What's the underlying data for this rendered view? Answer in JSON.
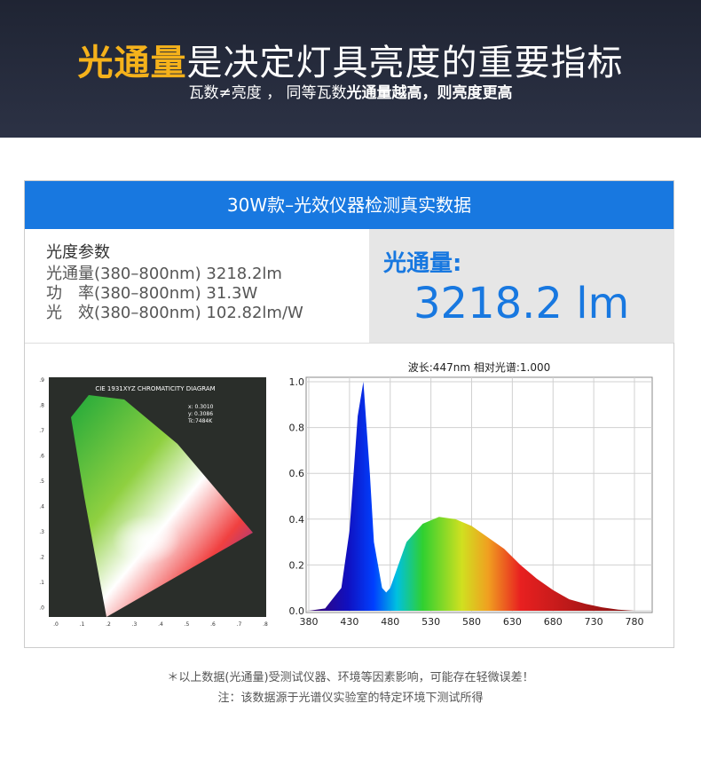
{
  "header": {
    "title_highlight": "光通量",
    "title_rest": "是决定灯具亮度的重要指标",
    "subtitle_plain": "瓦数≠亮度 ， 同等瓦数",
    "subtitle_bold": "光通量越高，则亮度更高"
  },
  "panel": {
    "banner": "30W款–光效仪器检测真实数据",
    "params_title": "光度参数",
    "params": [
      "光通量(380–800nm) 3218.2lm",
      "功　率(380–800nm) 31.3W",
      "光　效(380–800nm) 102.82lm/W"
    ],
    "flux_label": "光通量:",
    "flux_value": "3218.2 lm"
  },
  "cie": {
    "title": "CIE 1931XYZ CHROMATICITY DIAGRAM",
    "readings": [
      "x: 0.3010",
      "y: 0.3086",
      "Tc:7484K"
    ],
    "xticks": [
      ".0",
      ".1",
      ".2",
      ".3",
      ".4",
      ".5",
      ".6",
      ".7",
      ".8"
    ],
    "yticks": [
      ".9",
      ".8",
      ".7",
      ".6",
      ".5",
      ".4",
      ".3",
      ".2",
      ".1",
      ".0"
    ]
  },
  "spectrum": {
    "type": "area",
    "title": "波长:447nm  相对光谱:1.000",
    "x": [
      380,
      400,
      420,
      430,
      440,
      447,
      455,
      460,
      470,
      475,
      480,
      490,
      500,
      520,
      540,
      560,
      580,
      600,
      620,
      640,
      660,
      680,
      700,
      720,
      740,
      760,
      780
    ],
    "values": [
      0,
      0.01,
      0.1,
      0.35,
      0.85,
      1.0,
      0.6,
      0.3,
      0.1,
      0.08,
      0.1,
      0.2,
      0.3,
      0.38,
      0.41,
      0.4,
      0.37,
      0.32,
      0.27,
      0.2,
      0.14,
      0.09,
      0.05,
      0.03,
      0.015,
      0.005,
      0
    ],
    "xlim": [
      380,
      800
    ],
    "ylim": [
      0,
      1.05
    ],
    "xticks": [
      380,
      430,
      480,
      530,
      580,
      630,
      680,
      730,
      780
    ],
    "yticks": [
      {
        "value": 0,
        "label": "0.0"
      },
      {
        "value": 0.2,
        "label": "0.2"
      },
      {
        "value": 0.4,
        "label": "0.4"
      },
      {
        "value": 0.6,
        "label": "0.6"
      },
      {
        "value": 0.8,
        "label": "0.8"
      },
      {
        "value": 1,
        "label": "1.0"
      }
    ],
    "grid": true
  },
  "notes": [
    "＊以上数据(光通量)受测试仪器、环境等因素影响，可能存在轻微误差！",
    "注：该数据源于光谱仪实验室的特定环境下测试所得"
  ]
}
